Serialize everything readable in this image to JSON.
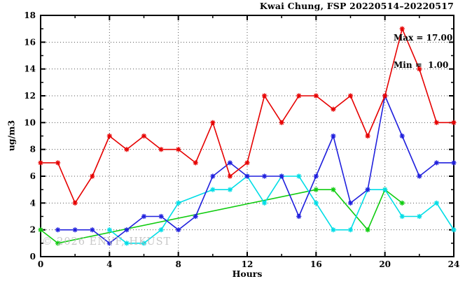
{
  "title": "Kwai Chung, FSP 20220514–20220517",
  "annotation": {
    "max_label": "Max = 17.00",
    "min_label": "Min =  1.00"
  },
  "watermark": "© 2026 ENVF, HKUST",
  "chart_data": {
    "type": "line",
    "title": "Kwai Chung, FSP 20220514–20220517",
    "xlabel": "Hours",
    "ylabel": "ug/m3",
    "xlim": [
      0,
      24
    ],
    "ylim": [
      0,
      18
    ],
    "grid": true,
    "legend": "none",
    "marker": "asterisk",
    "x_tick_values": [
      0,
      4,
      8,
      12,
      16,
      20,
      24
    ],
    "x_tick_labels": [
      "0",
      "4",
      "8",
      "12",
      "16",
      "20",
      "24"
    ],
    "x_minor_ticks": [
      2,
      6,
      10,
      14,
      18,
      22
    ],
    "y_tick_values": [
      0,
      2,
      4,
      6,
      8,
      10,
      12,
      14,
      16,
      18
    ],
    "y_tick_labels": [
      "0",
      "2",
      "4",
      "6",
      "8",
      "10",
      "12",
      "14",
      "16",
      "18"
    ],
    "y_minor_ticks": [
      1,
      3,
      5,
      7,
      9,
      11,
      13,
      15,
      17
    ],
    "x_grid_values": [
      4,
      8,
      12,
      16,
      20
    ],
    "y_grid_values": [
      2,
      4,
      6,
      8,
      10,
      12,
      14,
      16
    ],
    "stats": {
      "max": 17.0,
      "min": 1.0
    },
    "series": [
      {
        "name": "series-green",
        "color": "#10cc10",
        "points": [
          [
            0,
            2
          ],
          [
            1,
            1
          ],
          [
            16,
            5
          ],
          [
            17,
            5
          ],
          [
            19,
            2
          ],
          [
            20,
            5
          ],
          [
            21,
            4
          ]
        ]
      },
      {
        "name": "series-cyan",
        "color": "#00dde6",
        "points": [
          [
            4,
            2
          ],
          [
            5,
            1
          ],
          [
            6,
            1
          ],
          [
            7,
            2
          ],
          [
            8,
            4
          ],
          [
            10,
            5
          ],
          [
            11,
            5
          ],
          [
            12,
            6
          ],
          [
            13,
            4
          ],
          [
            14,
            6
          ],
          [
            15,
            6
          ],
          [
            16,
            4
          ],
          [
            17,
            2
          ],
          [
            18,
            2
          ],
          [
            19,
            5
          ],
          [
            20,
            5
          ],
          [
            21,
            3
          ],
          [
            22,
            3
          ],
          [
            23,
            4
          ],
          [
            24,
            2
          ]
        ]
      },
      {
        "name": "series-blue",
        "color": "#2020dd",
        "points": [
          [
            1,
            2
          ],
          [
            2,
            2
          ],
          [
            3,
            2
          ],
          [
            4,
            1
          ],
          [
            5,
            2
          ],
          [
            6,
            3
          ],
          [
            7,
            3
          ],
          [
            8,
            2
          ],
          [
            9,
            3
          ],
          [
            10,
            6
          ],
          [
            11,
            7
          ],
          [
            12,
            6
          ],
          [
            13,
            6
          ],
          [
            14,
            6
          ],
          [
            15,
            3
          ],
          [
            16,
            6
          ],
          [
            17,
            9
          ],
          [
            18,
            4
          ],
          [
            19,
            5
          ],
          [
            20,
            12
          ],
          [
            21,
            9
          ],
          [
            22,
            6
          ],
          [
            23,
            7
          ],
          [
            24,
            7
          ]
        ]
      },
      {
        "name": "series-red",
        "color": "#e60000",
        "points": [
          [
            0,
            7
          ],
          [
            1,
            7
          ],
          [
            2,
            4
          ],
          [
            3,
            6
          ],
          [
            4,
            9
          ],
          [
            5,
            8
          ],
          [
            6,
            9
          ],
          [
            7,
            8
          ],
          [
            8,
            8
          ],
          [
            9,
            7
          ],
          [
            10,
            10
          ],
          [
            11,
            6
          ],
          [
            12,
            7
          ],
          [
            13,
            12
          ],
          [
            14,
            10
          ],
          [
            15,
            12
          ],
          [
            16,
            12
          ],
          [
            17,
            11
          ],
          [
            18,
            12
          ],
          [
            19,
            9
          ],
          [
            20,
            12
          ],
          [
            21,
            17
          ],
          [
            22,
            14
          ],
          [
            23,
            10
          ],
          [
            24,
            10
          ]
        ]
      }
    ]
  }
}
